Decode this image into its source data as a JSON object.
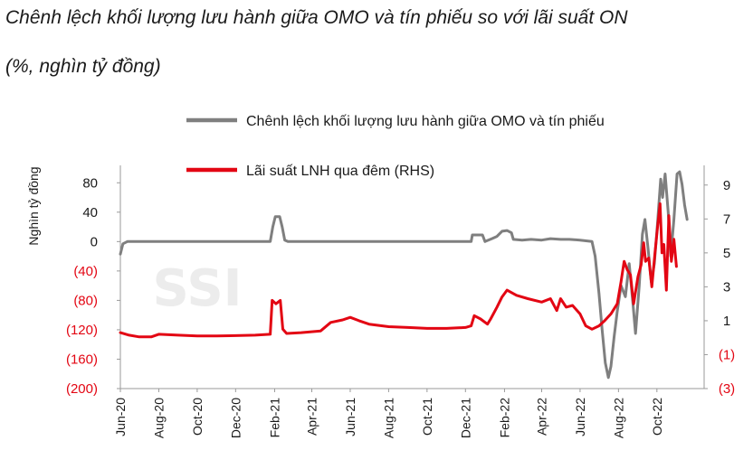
{
  "title_line1": "Chênh lệch khối lượng lưu hành giữa OMO và tín phiếu so với lãi suất ON",
  "title_line2": "(%, nghìn tỷ đồng)",
  "watermark": "SSI",
  "chart_data": {
    "type": "line",
    "ylabel": "Nghìn tỷ đồng",
    "ylim_left": [
      -200,
      100
    ],
    "ylim_right": [
      -3,
      10
    ],
    "left_ticks": [
      {
        "value": 80,
        "label": "80",
        "color": "#1a1a1a"
      },
      {
        "value": 40,
        "label": "40",
        "color": "#1a1a1a"
      },
      {
        "value": 0,
        "label": "0",
        "color": "#1a1a1a"
      },
      {
        "value": -40,
        "label": "(40)",
        "color": "#e30613"
      },
      {
        "value": -80,
        "label": "(80)",
        "color": "#e30613"
      },
      {
        "value": -120,
        "label": "(120)",
        "color": "#e30613"
      },
      {
        "value": -160,
        "label": "(160)",
        "color": "#e30613"
      },
      {
        "value": -200,
        "label": "(200)",
        "color": "#e30613"
      }
    ],
    "right_ticks": [
      {
        "value": 9,
        "label": "9",
        "color": "#1a1a1a"
      },
      {
        "value": 7,
        "label": "7",
        "color": "#1a1a1a"
      },
      {
        "value": 5,
        "label": "5",
        "color": "#1a1a1a"
      },
      {
        "value": 3,
        "label": "3",
        "color": "#1a1a1a"
      },
      {
        "value": 1,
        "label": "1",
        "color": "#1a1a1a"
      },
      {
        "value": -1,
        "label": "(1)",
        "color": "#e30613"
      },
      {
        "value": -3,
        "label": "(3)",
        "color": "#e30613"
      }
    ],
    "x_start": "2020-06-01",
    "x_end": "2022-12-15",
    "x_ticks": [
      {
        "date": "2020-06-01",
        "label": "Jun-20"
      },
      {
        "date": "2020-08-01",
        "label": "Aug-20"
      },
      {
        "date": "2020-10-01",
        "label": "Oct-20"
      },
      {
        "date": "2020-12-01",
        "label": "Dec-20"
      },
      {
        "date": "2021-02-01",
        "label": "Feb-21"
      },
      {
        "date": "2021-04-01",
        "label": "Apr-21"
      },
      {
        "date": "2021-06-01",
        "label": "Jun-21"
      },
      {
        "date": "2021-08-01",
        "label": "Aug-21"
      },
      {
        "date": "2021-10-01",
        "label": "Oct-21"
      },
      {
        "date": "2021-12-01",
        "label": "Dec-21"
      },
      {
        "date": "2022-02-01",
        "label": "Feb-22"
      },
      {
        "date": "2022-04-01",
        "label": "Apr-22"
      },
      {
        "date": "2022-06-01",
        "label": "Jun-22"
      },
      {
        "date": "2022-08-01",
        "label": "Aug-22"
      },
      {
        "date": "2022-10-01",
        "label": "Oct-22"
      }
    ],
    "series": [
      {
        "name": "Chênh lệch khối lượng lưu hành giữa OMO và tín phiếu",
        "axis": "left",
        "color": "#7f7f7f",
        "points": [
          [
            "2020-06-01",
            -17
          ],
          [
            "2020-06-05",
            -3
          ],
          [
            "2020-06-12",
            0
          ],
          [
            "2021-01-25",
            0
          ],
          [
            "2021-01-29",
            20
          ],
          [
            "2021-02-02",
            34
          ],
          [
            "2021-02-09",
            34
          ],
          [
            "2021-02-13",
            20
          ],
          [
            "2021-02-17",
            2
          ],
          [
            "2021-02-22",
            0
          ],
          [
            "2021-12-10",
            0
          ],
          [
            "2021-12-12",
            9
          ],
          [
            "2021-12-28",
            9
          ],
          [
            "2022-01-01",
            0
          ],
          [
            "2022-01-12",
            4
          ],
          [
            "2022-01-20",
            7
          ],
          [
            "2022-01-28",
            14
          ],
          [
            "2022-02-05",
            15
          ],
          [
            "2022-02-12",
            12
          ],
          [
            "2022-02-15",
            3
          ],
          [
            "2022-03-01",
            2
          ],
          [
            "2022-03-15",
            3
          ],
          [
            "2022-04-01",
            2
          ],
          [
            "2022-04-15",
            4
          ],
          [
            "2022-05-01",
            3
          ],
          [
            "2022-05-15",
            3
          ],
          [
            "2022-06-01",
            2
          ],
          [
            "2022-06-20",
            0
          ],
          [
            "2022-06-25",
            -20
          ],
          [
            "2022-07-01",
            -70
          ],
          [
            "2022-07-06",
            -120
          ],
          [
            "2022-07-11",
            -165
          ],
          [
            "2022-07-16",
            -185
          ],
          [
            "2022-07-20",
            -170
          ],
          [
            "2022-07-25",
            -130
          ],
          [
            "2022-07-30",
            -95
          ],
          [
            "2022-08-05",
            -60
          ],
          [
            "2022-08-12",
            -75
          ],
          [
            "2022-08-18",
            -30
          ],
          [
            "2022-08-24",
            -85
          ],
          [
            "2022-08-28",
            -125
          ],
          [
            "2022-09-03",
            -60
          ],
          [
            "2022-09-08",
            10
          ],
          [
            "2022-09-12",
            30
          ],
          [
            "2022-09-17",
            -10
          ],
          [
            "2022-09-22",
            -55
          ],
          [
            "2022-09-27",
            -30
          ],
          [
            "2022-10-02",
            25
          ],
          [
            "2022-10-07",
            85
          ],
          [
            "2022-10-10",
            60
          ],
          [
            "2022-10-14",
            92
          ],
          [
            "2022-10-19",
            40
          ],
          [
            "2022-10-23",
            -20
          ],
          [
            "2022-10-28",
            30
          ],
          [
            "2022-11-02",
            92
          ],
          [
            "2022-11-06",
            95
          ],
          [
            "2022-11-10",
            78
          ],
          [
            "2022-11-14",
            50
          ],
          [
            "2022-11-18",
            30
          ]
        ]
      },
      {
        "name": "Lãi suất LNH qua đêm (RHS)",
        "axis": "right",
        "color": "#e30613",
        "points": [
          [
            "2020-06-01",
            0.3
          ],
          [
            "2020-06-15",
            0.15
          ],
          [
            "2020-07-01",
            0.05
          ],
          [
            "2020-07-20",
            0.05
          ],
          [
            "2020-08-01",
            0.2
          ],
          [
            "2020-09-01",
            0.15
          ],
          [
            "2020-10-01",
            0.1
          ],
          [
            "2020-11-01",
            0.1
          ],
          [
            "2020-12-01",
            0.12
          ],
          [
            "2021-01-01",
            0.15
          ],
          [
            "2021-01-25",
            0.2
          ],
          [
            "2021-01-28",
            2.2
          ],
          [
            "2021-02-03",
            2.0
          ],
          [
            "2021-02-10",
            2.2
          ],
          [
            "2021-02-14",
            0.5
          ],
          [
            "2021-02-20",
            0.25
          ],
          [
            "2021-03-15",
            0.3
          ],
          [
            "2021-04-15",
            0.4
          ],
          [
            "2021-05-01",
            0.9
          ],
          [
            "2021-05-20",
            1.05
          ],
          [
            "2021-06-01",
            1.2
          ],
          [
            "2021-06-15",
            1.0
          ],
          [
            "2021-07-01",
            0.8
          ],
          [
            "2021-08-01",
            0.65
          ],
          [
            "2021-09-01",
            0.6
          ],
          [
            "2021-10-01",
            0.55
          ],
          [
            "2021-11-01",
            0.55
          ],
          [
            "2021-12-01",
            0.6
          ],
          [
            "2021-12-10",
            0.7
          ],
          [
            "2021-12-15",
            1.3
          ],
          [
            "2021-12-25",
            1.1
          ],
          [
            "2022-01-05",
            0.8
          ],
          [
            "2022-01-10",
            1.1
          ],
          [
            "2022-01-20",
            1.8
          ],
          [
            "2022-01-28",
            2.4
          ],
          [
            "2022-02-05",
            2.8
          ],
          [
            "2022-02-20",
            2.5
          ],
          [
            "2022-03-10",
            2.3
          ],
          [
            "2022-04-01",
            2.1
          ],
          [
            "2022-04-15",
            2.3
          ],
          [
            "2022-04-25",
            1.6
          ],
          [
            "2022-05-01",
            2.3
          ],
          [
            "2022-05-10",
            1.8
          ],
          [
            "2022-05-20",
            1.9
          ],
          [
            "2022-06-01",
            1.4
          ],
          [
            "2022-06-10",
            0.7
          ],
          [
            "2022-06-20",
            0.5
          ],
          [
            "2022-07-01",
            0.7
          ],
          [
            "2022-07-10",
            1.0
          ],
          [
            "2022-07-20",
            1.4
          ],
          [
            "2022-07-30",
            2.0
          ],
          [
            "2022-08-05",
            3.3
          ],
          [
            "2022-08-10",
            4.5
          ],
          [
            "2022-08-15",
            4.0
          ],
          [
            "2022-08-20",
            3.7
          ],
          [
            "2022-08-25",
            2.0
          ],
          [
            "2022-09-01",
            3.6
          ],
          [
            "2022-09-06",
            4.3
          ],
          [
            "2022-09-10",
            5.6
          ],
          [
            "2022-09-13",
            4.5
          ],
          [
            "2022-09-18",
            4.7
          ],
          [
            "2022-09-23",
            3.0
          ],
          [
            "2022-09-28",
            5.0
          ],
          [
            "2022-10-02",
            6.5
          ],
          [
            "2022-10-06",
            7.9
          ],
          [
            "2022-10-09",
            5.0
          ],
          [
            "2022-10-12",
            5.5
          ],
          [
            "2022-10-16",
            2.8
          ],
          [
            "2022-10-20",
            7.2
          ],
          [
            "2022-10-24",
            4.5
          ],
          [
            "2022-10-28",
            5.8
          ],
          [
            "2022-11-01",
            4.2
          ]
        ]
      }
    ]
  }
}
